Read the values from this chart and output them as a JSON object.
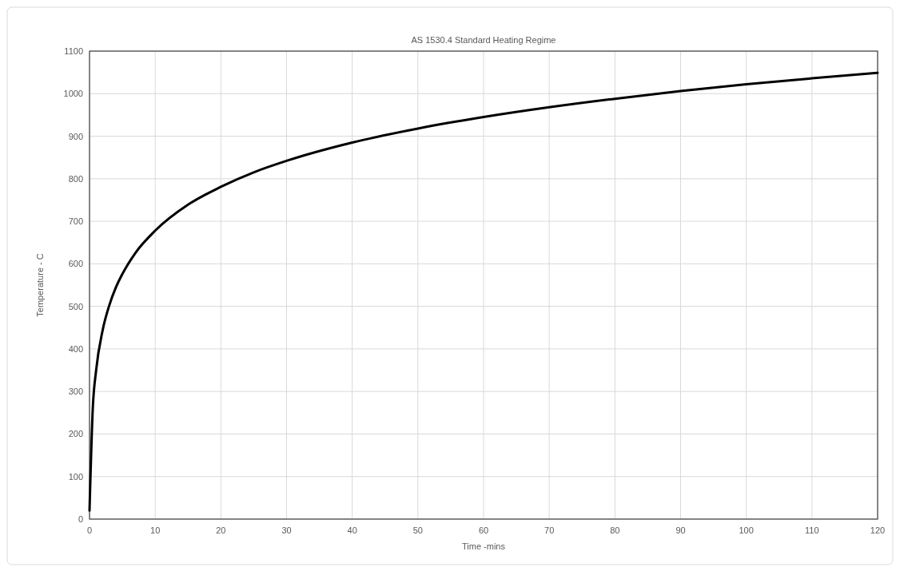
{
  "chart_data": {
    "type": "line",
    "title": "AS 1530.4 Standard Heating Regime",
    "xlabel": "Time -mins",
    "ylabel": "Temperature - C",
    "x": [
      0,
      0.5,
      1,
      2,
      3,
      4,
      5,
      7,
      10,
      15,
      20,
      25,
      30,
      40,
      50,
      60,
      70,
      80,
      90,
      100,
      110,
      120
    ],
    "series": [
      {
        "color": "#000000",
        "values": [
          20,
          261,
          349,
          444,
          502,
          544,
          576,
          626,
          678,
          739,
          781,
          815,
          842,
          885,
          918,
          945,
          968,
          988,
          1006,
          1022,
          1036,
          1049
        ]
      }
    ],
    "xlim": [
      0,
      120
    ],
    "xticks": [
      0,
      10,
      20,
      30,
      40,
      50,
      60,
      70,
      80,
      90,
      100,
      110,
      120
    ],
    "ylim": [
      0,
      1100
    ],
    "yticks": [
      0,
      100,
      200,
      300,
      400,
      500,
      600,
      700,
      800,
      900,
      1000,
      1100
    ],
    "grid": true,
    "marker": "none",
    "line_style": "solid"
  }
}
